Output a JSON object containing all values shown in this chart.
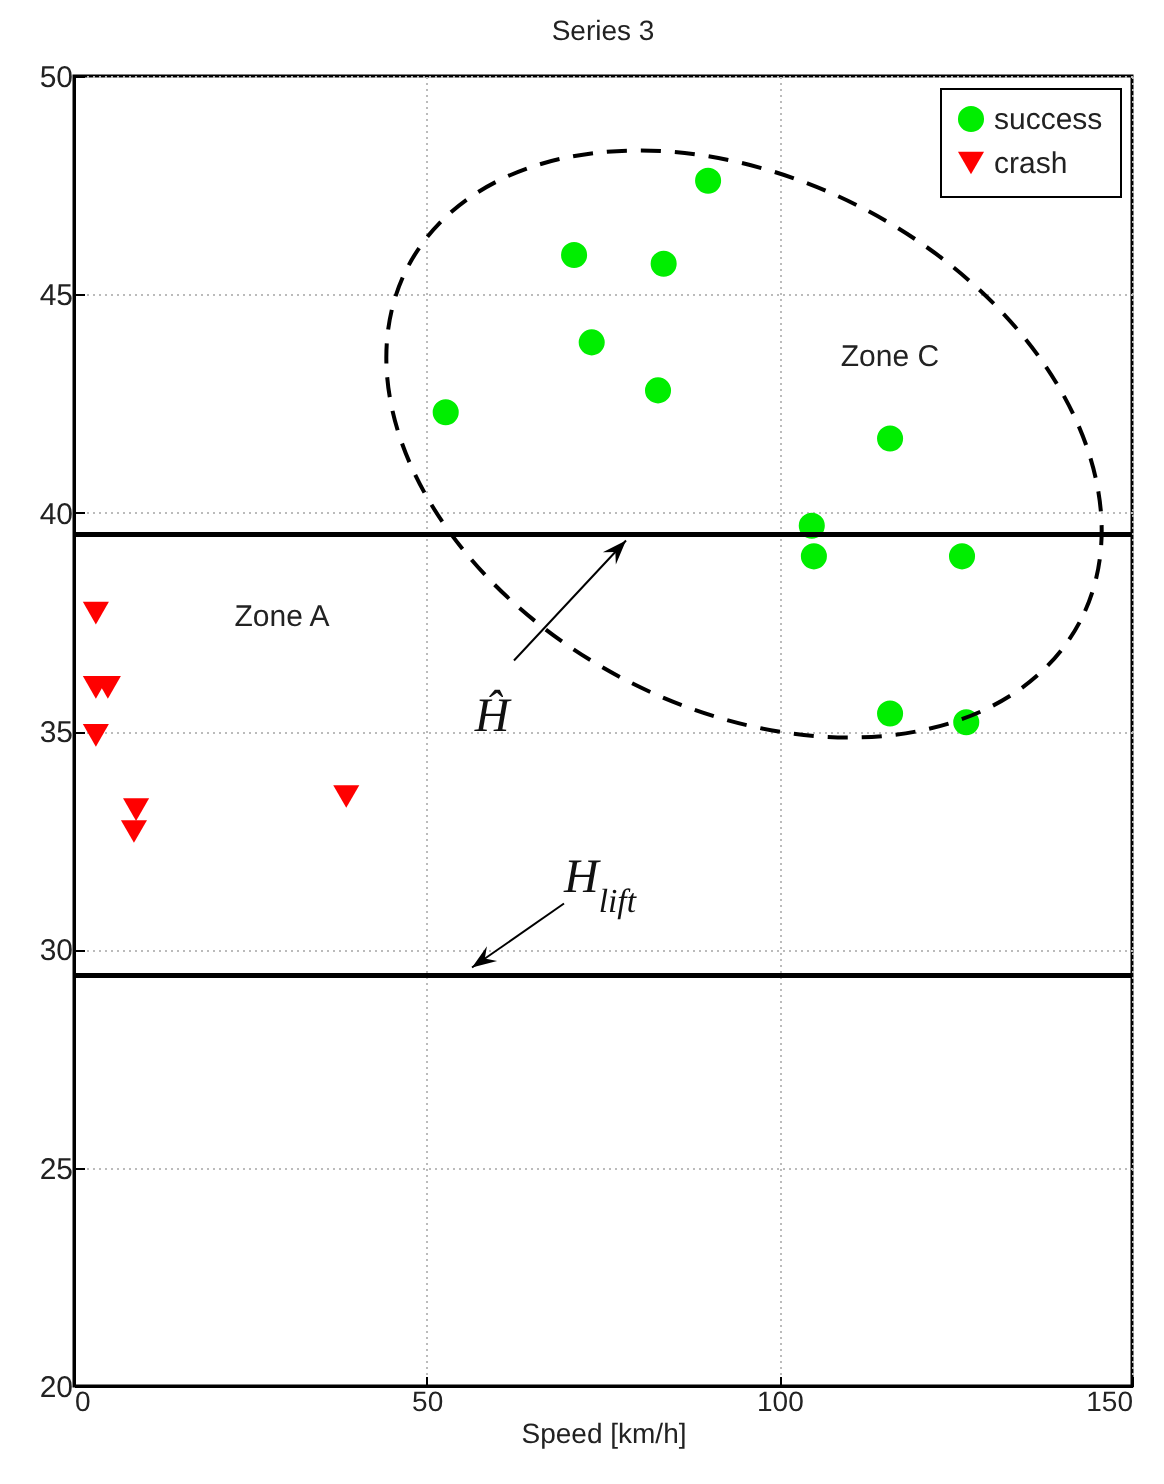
{
  "chart_data": {
    "type": "scatter",
    "title": "Series 3",
    "xlabel": "Speed [km/h]",
    "xlim": [
      0,
      150
    ],
    "xticks": [
      0,
      50,
      100,
      150
    ],
    "ylim": [
      20,
      50
    ],
    "yticks": [
      20,
      25,
      30,
      35,
      40,
      45,
      50
    ],
    "grid": true,
    "legend": "top right",
    "series": [
      {
        "name": "success",
        "color": "#00ee00",
        "marker": "circle",
        "x": [
          89.9,
          70.9,
          83.6,
          73.4,
          82.8,
          52.7,
          115.7,
          104.6,
          104.9,
          125.9,
          115.7,
          126.5
        ],
        "values": [
          47.6,
          45.9,
          45.7,
          43.9,
          42.8,
          42.3,
          41.7,
          39.7,
          39.0,
          39.0,
          35.4,
          35.2
        ]
      },
      {
        "name": "crash",
        "color": "#ff0000",
        "marker": "triangle",
        "x": [
          3.1,
          3.1,
          4.8,
          3.1,
          8.8,
          8.5,
          38.6
        ],
        "values": [
          37.7,
          36.0,
          36.0,
          34.9,
          33.2,
          32.7,
          33.5
        ]
      }
    ],
    "ref_lines": [
      {
        "axis": "y",
        "value": 39.5,
        "label": "Ĥ"
      },
      {
        "axis": "y",
        "value": 29.4,
        "label": "H$_{lift}$"
      }
    ],
    "annotations": [
      "Zone A",
      "Zone C"
    ]
  }
}
